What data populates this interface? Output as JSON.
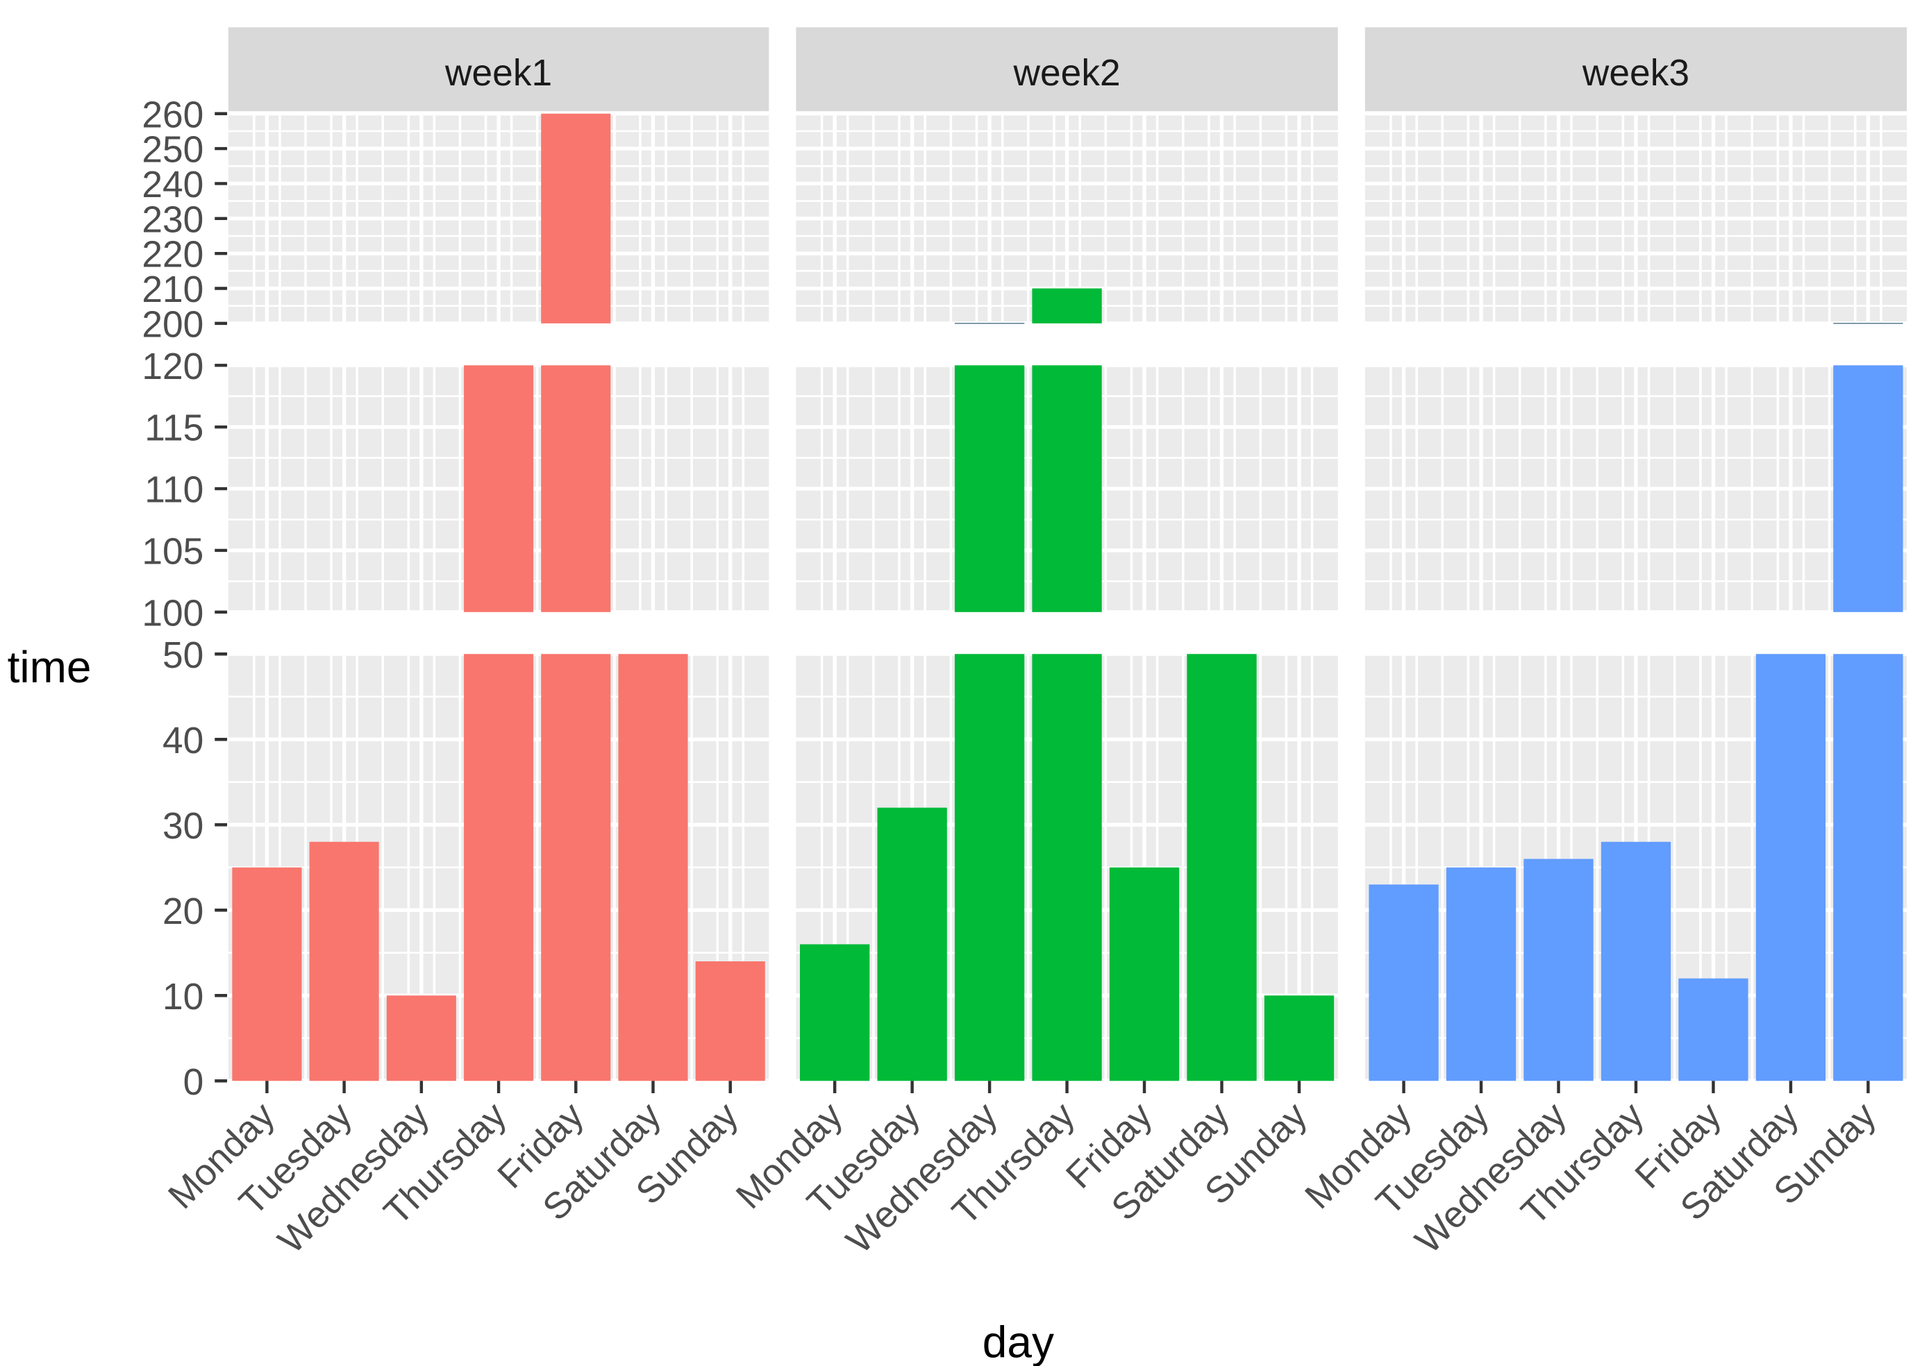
{
  "chart_data": {
    "type": "bar",
    "xlabel": "day",
    "ylabel": "time",
    "categories": [
      "Monday",
      "Tuesday",
      "Wednesday",
      "Thursday",
      "Friday",
      "Saturday",
      "Sunday"
    ],
    "facets": [
      {
        "label": "week1",
        "color": "#F8766D",
        "values": [
          25,
          28,
          10,
          150,
          260,
          50,
          14
        ]
      },
      {
        "label": "week2",
        "color": "#00BA38",
        "values": [
          16,
          32,
          200,
          210,
          25,
          50,
          10
        ]
      },
      {
        "label": "week3",
        "color": "#619CFF",
        "values": [
          23,
          25,
          26,
          28,
          12,
          50,
          200
        ]
      }
    ],
    "y_segments": [
      {
        "range": [
          0,
          50
        ],
        "ticks": [
          "0",
          "10",
          "20",
          "30",
          "40",
          "50"
        ]
      },
      {
        "range": [
          100,
          120
        ],
        "ticks": [
          "100",
          "105",
          "110",
          "115",
          "120"
        ]
      },
      {
        "range": [
          200,
          260
        ],
        "ticks": [
          "200",
          "210",
          "220",
          "230",
          "240",
          "250",
          "260"
        ]
      }
    ],
    "grid": true,
    "legend": "none",
    "panel_background": "#EBEBEB",
    "strip_background": "#D9D9D9"
  }
}
